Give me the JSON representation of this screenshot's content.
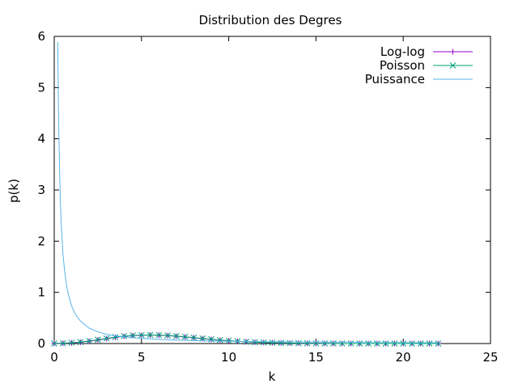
{
  "chart_data": {
    "type": "line",
    "title": "Distribution des Degres",
    "xlabel": "k",
    "ylabel": "p(k)",
    "xlim": [
      0,
      25
    ],
    "ylim": [
      0,
      6
    ],
    "xticks": [
      0,
      5,
      10,
      15,
      20,
      25
    ],
    "yticks": [
      0,
      1,
      2,
      3,
      4,
      5,
      6
    ],
    "grid": false,
    "legend_position": "top-right",
    "series": [
      {
        "name": "Log-log",
        "style": "linespoints",
        "marker": "+",
        "color": "#9400d3",
        "x": [
          0,
          0.5,
          1,
          1.5,
          2,
          2.5,
          3,
          3.5,
          4,
          4.5,
          5,
          5.5,
          6,
          6.5,
          7,
          7.5,
          8,
          8.5,
          9,
          9.5,
          10,
          10.5,
          11,
          11.5,
          12,
          12.5,
          13,
          13.5,
          14,
          14.5,
          15,
          15.5,
          16,
          16.5,
          17,
          17.5,
          18,
          18.5,
          19,
          19.5,
          20,
          20.5,
          21,
          21.5,
          22
        ],
        "y": [
          0.002,
          0.005,
          0.012,
          0.025,
          0.045,
          0.07,
          0.095,
          0.12,
          0.14,
          0.155,
          0.162,
          0.165,
          0.162,
          0.155,
          0.143,
          0.128,
          0.112,
          0.096,
          0.08,
          0.066,
          0.054,
          0.043,
          0.034,
          0.026,
          0.02,
          0.015,
          0.011,
          0.008,
          0.006,
          0.004,
          0.003,
          0.002,
          0.0015,
          0.001,
          0.0007,
          0.0005,
          0.0003,
          0.0002,
          0.0001,
          0.0001,
          0.0001,
          0.0,
          0.0,
          0.0,
          0.0
        ]
      },
      {
        "name": "Poisson",
        "style": "linespoints",
        "marker": "x",
        "color": "#009e73",
        "x": [
          0,
          0.5,
          1,
          1.5,
          2,
          2.5,
          3,
          3.5,
          4,
          4.5,
          5,
          5.5,
          6,
          6.5,
          7,
          7.5,
          8,
          8.5,
          9,
          9.5,
          10,
          10.5,
          11,
          11.5,
          12,
          12.5,
          13,
          13.5,
          14,
          14.5,
          15,
          15.5,
          16,
          16.5,
          17,
          17.5,
          18,
          18.5,
          19,
          19.5,
          20,
          20.5,
          21,
          21.5,
          22
        ],
        "y": [
          0.002,
          0.006,
          0.015,
          0.03,
          0.05,
          0.075,
          0.1,
          0.125,
          0.145,
          0.158,
          0.165,
          0.168,
          0.165,
          0.158,
          0.146,
          0.131,
          0.115,
          0.099,
          0.083,
          0.068,
          0.056,
          0.045,
          0.035,
          0.027,
          0.021,
          0.016,
          0.012,
          0.009,
          0.006,
          0.0045,
          0.003,
          0.002,
          0.0015,
          0.001,
          0.0007,
          0.0005,
          0.0003,
          0.0002,
          0.0001,
          0.0001,
          0.0001,
          0.0,
          0.0,
          0.0,
          0.0
        ]
      },
      {
        "name": "Puissance",
        "style": "lines",
        "color": "#56b4e9",
        "x": [
          0.2,
          0.25,
          0.3,
          0.35,
          0.4,
          0.5,
          0.6,
          0.7,
          0.8,
          1.0,
          1.2,
          1.5,
          2.0,
          2.5,
          3.0,
          3.5,
          4.0,
          5.0,
          6.0,
          7.0,
          8.0,
          10.0,
          12.0,
          15.0,
          18.0,
          20.0,
          22.0
        ],
        "y": [
          5.89,
          4.4,
          3.5,
          2.8,
          2.35,
          1.75,
          1.4,
          1.15,
          0.97,
          0.73,
          0.58,
          0.44,
          0.3,
          0.23,
          0.18,
          0.15,
          0.13,
          0.1,
          0.08,
          0.067,
          0.057,
          0.043,
          0.035,
          0.027,
          0.022,
          0.019,
          0.017
        ]
      }
    ]
  }
}
